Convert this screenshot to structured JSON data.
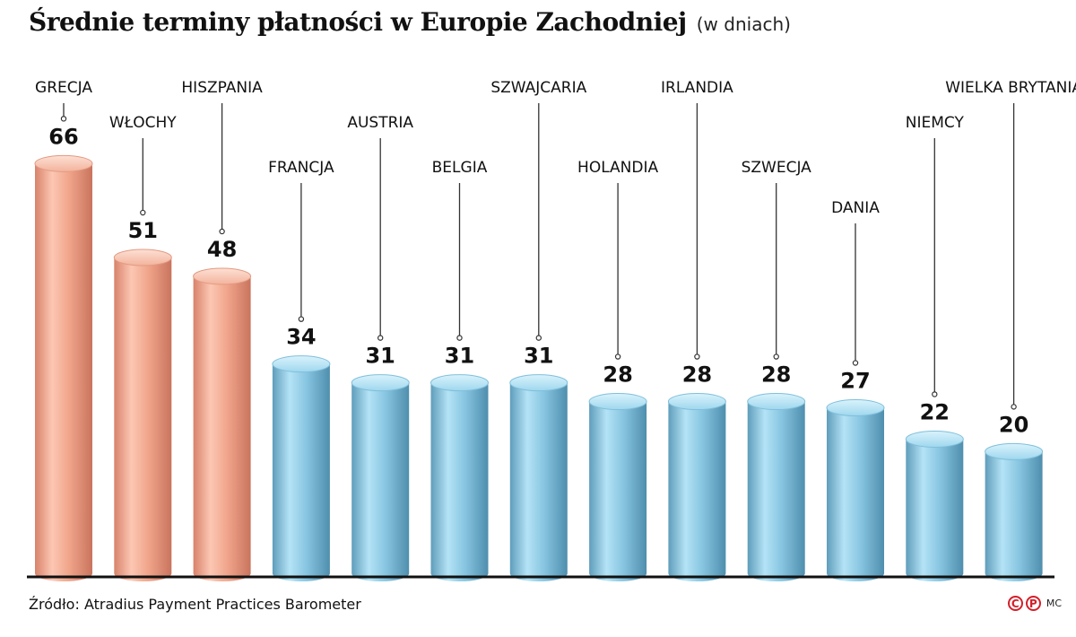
{
  "title": "Średnie terminy płatności w Europie Zachodniej",
  "unit": "(w dniach)",
  "source": "Źródło: Atradius Payment Practices Barometer",
  "credits": {
    "c_mark": "C",
    "p_mark": "P",
    "initials": "MC"
  },
  "colors": {
    "high": "#f4a98e",
    "low": "#8dcdea",
    "axis": "#111111"
  },
  "chart_data": {
    "type": "bar",
    "style": "3d-cylinder",
    "title": "Średnie terminy płatności w Europie Zachodniej",
    "unit": "(w dniach)",
    "categories": [
      "GRECJA",
      "WŁOCHY",
      "HISZPANIA",
      "FRANCJA",
      "AUSTRIA",
      "BELGIA",
      "SZWAJCARIA",
      "HOLANDIA",
      "IRLANDIA",
      "SZWECJA",
      "DANIA",
      "NIEMCY",
      "WIELKA BRYTANIA"
    ],
    "values": [
      66,
      51,
      48,
      34,
      31,
      31,
      31,
      28,
      28,
      28,
      27,
      22,
      20
    ],
    "color_groups": [
      "high",
      "high",
      "high",
      "low",
      "low",
      "low",
      "low",
      "low",
      "low",
      "low",
      "low",
      "low",
      "low"
    ],
    "ylim": [
      0,
      66
    ],
    "grid": false,
    "legend": "none"
  }
}
